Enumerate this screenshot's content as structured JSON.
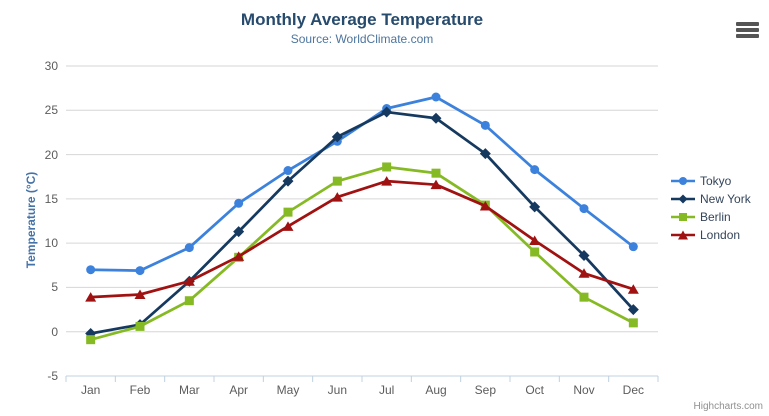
{
  "chart_data": {
    "type": "line",
    "title": "Monthly Average Temperature",
    "subtitle": "Source: WorldClimate.com",
    "xlabel": "",
    "ylabel": "Temperature (°C)",
    "categories": [
      "Jan",
      "Feb",
      "Mar",
      "Apr",
      "May",
      "Jun",
      "Jul",
      "Aug",
      "Sep",
      "Oct",
      "Nov",
      "Dec"
    ],
    "series": [
      {
        "name": "Tokyo",
        "color": "#3c82dd",
        "marker": "circle",
        "values": [
          7.0,
          6.9,
          9.5,
          14.5,
          18.2,
          21.5,
          25.2,
          26.5,
          23.3,
          18.3,
          13.9,
          9.6
        ]
      },
      {
        "name": "New York",
        "color": "#16395f",
        "marker": "diamond",
        "values": [
          -0.2,
          0.8,
          5.7,
          11.3,
          17.0,
          22.0,
          24.8,
          24.1,
          20.1,
          14.1,
          8.6,
          2.5
        ]
      },
      {
        "name": "Berlin",
        "color": "#86ba24",
        "marker": "square",
        "values": [
          -0.9,
          0.6,
          3.5,
          8.4,
          13.5,
          17.0,
          18.6,
          17.9,
          14.3,
          9.0,
          3.9,
          1.0
        ]
      },
      {
        "name": "London",
        "color": "#a01212",
        "marker": "triangle",
        "values": [
          3.9,
          4.2,
          5.7,
          8.5,
          11.9,
          15.2,
          17.0,
          16.6,
          14.2,
          10.3,
          6.6,
          4.8
        ]
      }
    ],
    "ylim": [
      -5,
      30
    ],
    "yticks": [
      -5,
      0,
      5,
      10,
      15,
      20,
      25,
      30
    ],
    "grid": true,
    "legend_position": "right-middle",
    "gridline_color": "#d6d6d6",
    "axis_line_color": "#c0d0e0",
    "title_color": "#274b6d",
    "subtitle_color": "#4d759e",
    "axis_title_color": "#4572a7"
  },
  "export_menu": {
    "icon": "hamburger-menu-icon"
  },
  "credits": {
    "label": "Highcharts.com"
  }
}
